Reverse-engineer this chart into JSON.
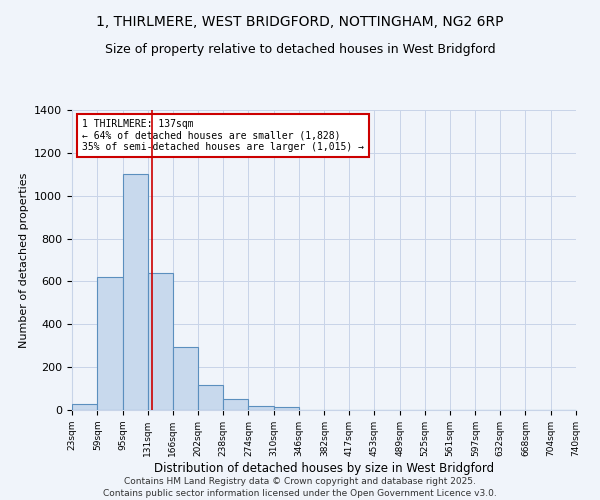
{
  "title": "1, THIRLMERE, WEST BRIDGFORD, NOTTINGHAM, NG2 6RP",
  "subtitle": "Size of property relative to detached houses in West Bridgford",
  "xlabel": "Distribution of detached houses by size in West Bridgford",
  "ylabel": "Number of detached properties",
  "bin_edges": [
    23,
    59,
    95,
    131,
    166,
    202,
    238,
    274,
    310,
    346,
    382,
    417,
    453,
    489,
    525,
    561,
    597,
    632,
    668,
    704,
    740
  ],
  "bar_heights": [
    30,
    620,
    1100,
    640,
    295,
    115,
    50,
    20,
    15,
    0,
    0,
    0,
    0,
    0,
    0,
    0,
    0,
    0,
    0,
    0
  ],
  "bar_facecolor": "#c8d9ed",
  "bar_edgecolor": "#5b8fbe",
  "bar_linewidth": 0.8,
  "vline_x": 137,
  "vline_color": "#cc0000",
  "vline_linewidth": 1.2,
  "annotation_text": "1 THIRLMERE: 137sqm\n← 64% of detached houses are smaller (1,828)\n35% of semi-detached houses are larger (1,015) →",
  "annotation_box_edgecolor": "#cc0000",
  "annotation_box_facecolor": "#ffffff",
  "ylim": [
    0,
    1400
  ],
  "yticks": [
    0,
    200,
    400,
    600,
    800,
    1000,
    1200,
    1400
  ],
  "background_color": "#f0f4fa",
  "grid_color": "#c8d4e8",
  "title_fontsize": 10,
  "subtitle_fontsize": 9,
  "ylabel_fontsize": 8,
  "xlabel_fontsize": 8.5,
  "footer_text": "Contains HM Land Registry data © Crown copyright and database right 2025.\nContains public sector information licensed under the Open Government Licence v3.0.",
  "footer_fontsize": 6.5
}
